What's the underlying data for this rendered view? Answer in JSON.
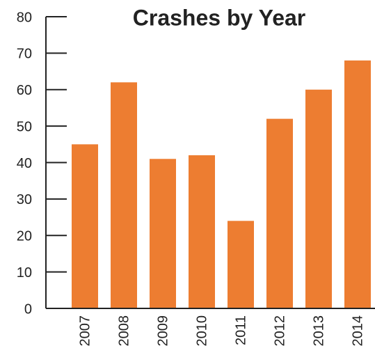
{
  "chart_data": {
    "type": "bar",
    "title": "Crashes by Year",
    "categories": [
      "2007",
      "2008",
      "2009",
      "2010",
      "2011",
      "2012",
      "2013",
      "2014"
    ],
    "values": [
      45,
      62,
      41,
      42,
      24,
      52,
      60,
      68
    ],
    "color": "#ed7d31",
    "ylim": [
      0,
      80
    ],
    "yticks": [
      0,
      10,
      20,
      30,
      40,
      50,
      60,
      70,
      80
    ]
  }
}
